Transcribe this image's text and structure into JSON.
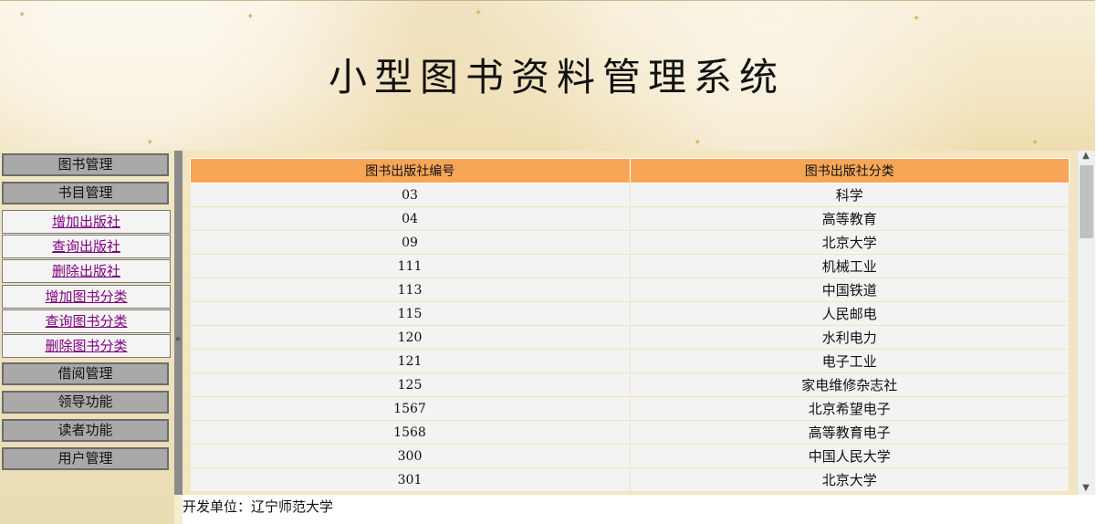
{
  "header": {
    "title": "小型图书资料管理系统"
  },
  "sidebar": {
    "groups": [
      {
        "label": "图书管理"
      },
      {
        "label": "书目管理"
      }
    ],
    "links": [
      {
        "label": "增加出版社"
      },
      {
        "label": "查询出版社"
      },
      {
        "label": "删除出版社"
      },
      {
        "label": "增加图书分类"
      },
      {
        "label": "查询图书分类"
      },
      {
        "label": "删除图书分类"
      }
    ],
    "groups_after": [
      {
        "label": "借阅管理"
      },
      {
        "label": "领导功能"
      },
      {
        "label": "读者功能"
      },
      {
        "label": "用户管理"
      }
    ]
  },
  "table": {
    "headers": [
      "图书出版社编号",
      "图书出版社分类"
    ],
    "rows": [
      [
        "03",
        "科学"
      ],
      [
        "04",
        "高等教育"
      ],
      [
        "09",
        "北京大学"
      ],
      [
        "111",
        "机械工业"
      ],
      [
        "113",
        "中国铁道"
      ],
      [
        "115",
        "人民邮电"
      ],
      [
        "120",
        "水利电力"
      ],
      [
        "121",
        "电子工业"
      ],
      [
        "125",
        "家电维修杂志社"
      ],
      [
        "1567",
        "北京希望电子"
      ],
      [
        "1568",
        "高等教育电子"
      ],
      [
        "300",
        "中国人民大学"
      ],
      [
        "301",
        "北京大学"
      ]
    ]
  },
  "footer": {
    "text": "开发单位：辽宁师范大学"
  },
  "colors": {
    "table_header": "#f7a658",
    "menu_group": "#a9a9a9",
    "link": "#800080"
  },
  "icons": {
    "splitter": "double-left-chevron-icon",
    "scroll_up": "chevron-up-icon",
    "scroll_down": "chevron-down-icon"
  }
}
